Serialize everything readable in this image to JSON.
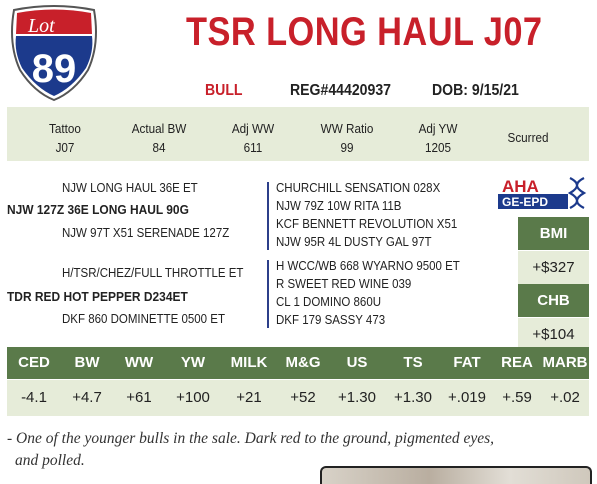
{
  "lot": {
    "label": "Lot",
    "number": "89"
  },
  "title": "TSR LONG HAUL J07",
  "meta": {
    "sex": "BULL",
    "reg": "REG#44420937",
    "dob": "DOB: 9/15/21"
  },
  "info": [
    {
      "label": "Tattoo",
      "value": "J07"
    },
    {
      "label": "Actual BW",
      "value": "84"
    },
    {
      "label": "Adj WW",
      "value": "611"
    },
    {
      "label": "WW Ratio",
      "value": "99"
    },
    {
      "label": "Adj YW",
      "value": "1205"
    },
    {
      "label": "Scurred",
      "value": ""
    }
  ],
  "pedigree": {
    "sire_sire": "NJW LONG HAUL 36E ET",
    "sire": "NJW 127Z 36E LONG HAUL 90G",
    "sire_dam": "NJW 97T X51 SERENADE 127Z",
    "dam_sire": "H/TSR/CHEZ/FULL THROTTLE ET",
    "dam": "TDR RED HOT PEPPER D234ET",
    "dam_dam": "DKF 860 DOMINETTE 0500 ET",
    "sire_gen3": [
      "CHURCHILL SENSATION 028X",
      "NJW 79Z 10W RITA 11B",
      "KCF BENNETT REVOLUTION X51",
      "NJW 95R 4L DUSTY GAL 97T"
    ],
    "dam_gen3": [
      "H WCC/WB 668 WYARNO 9500 ET",
      "R SWEET RED WINE 039",
      "CL 1 DOMINO 860U",
      "DKF 179 SASSY 473"
    ]
  },
  "logo": {
    "line1": "AHA",
    "line2": "GE-EPD"
  },
  "indexes": [
    {
      "label": "BMI",
      "value": "+$327"
    },
    {
      "label": "CHB",
      "value": "+$104"
    }
  ],
  "epd": [
    {
      "label": "CED",
      "value": "-4.1"
    },
    {
      "label": "BW",
      "value": "+4.7"
    },
    {
      "label": "WW",
      "value": "+61"
    },
    {
      "label": "YW",
      "value": "+100"
    },
    {
      "label": "MILK",
      "value": "+21"
    },
    {
      "label": "M&G",
      "value": "+52"
    },
    {
      "label": "US",
      "value": "+1.30"
    },
    {
      "label": "TS",
      "value": "+1.30"
    },
    {
      "label": "FAT",
      "value": "+.019"
    },
    {
      "label": "REA",
      "value": "+.59"
    },
    {
      "label": "MARB",
      "value": "+.02"
    }
  ],
  "note_line1": "- One of the younger bulls in the sale.  Dark red to the ground, pigmented eyes,",
  "note_line2": "and polled.",
  "colors": {
    "accent_red": "#c8202a",
    "badge_blue": "#1c3a8c",
    "header_green": "#5a7a4a",
    "band_green": "#e6ecd9"
  }
}
